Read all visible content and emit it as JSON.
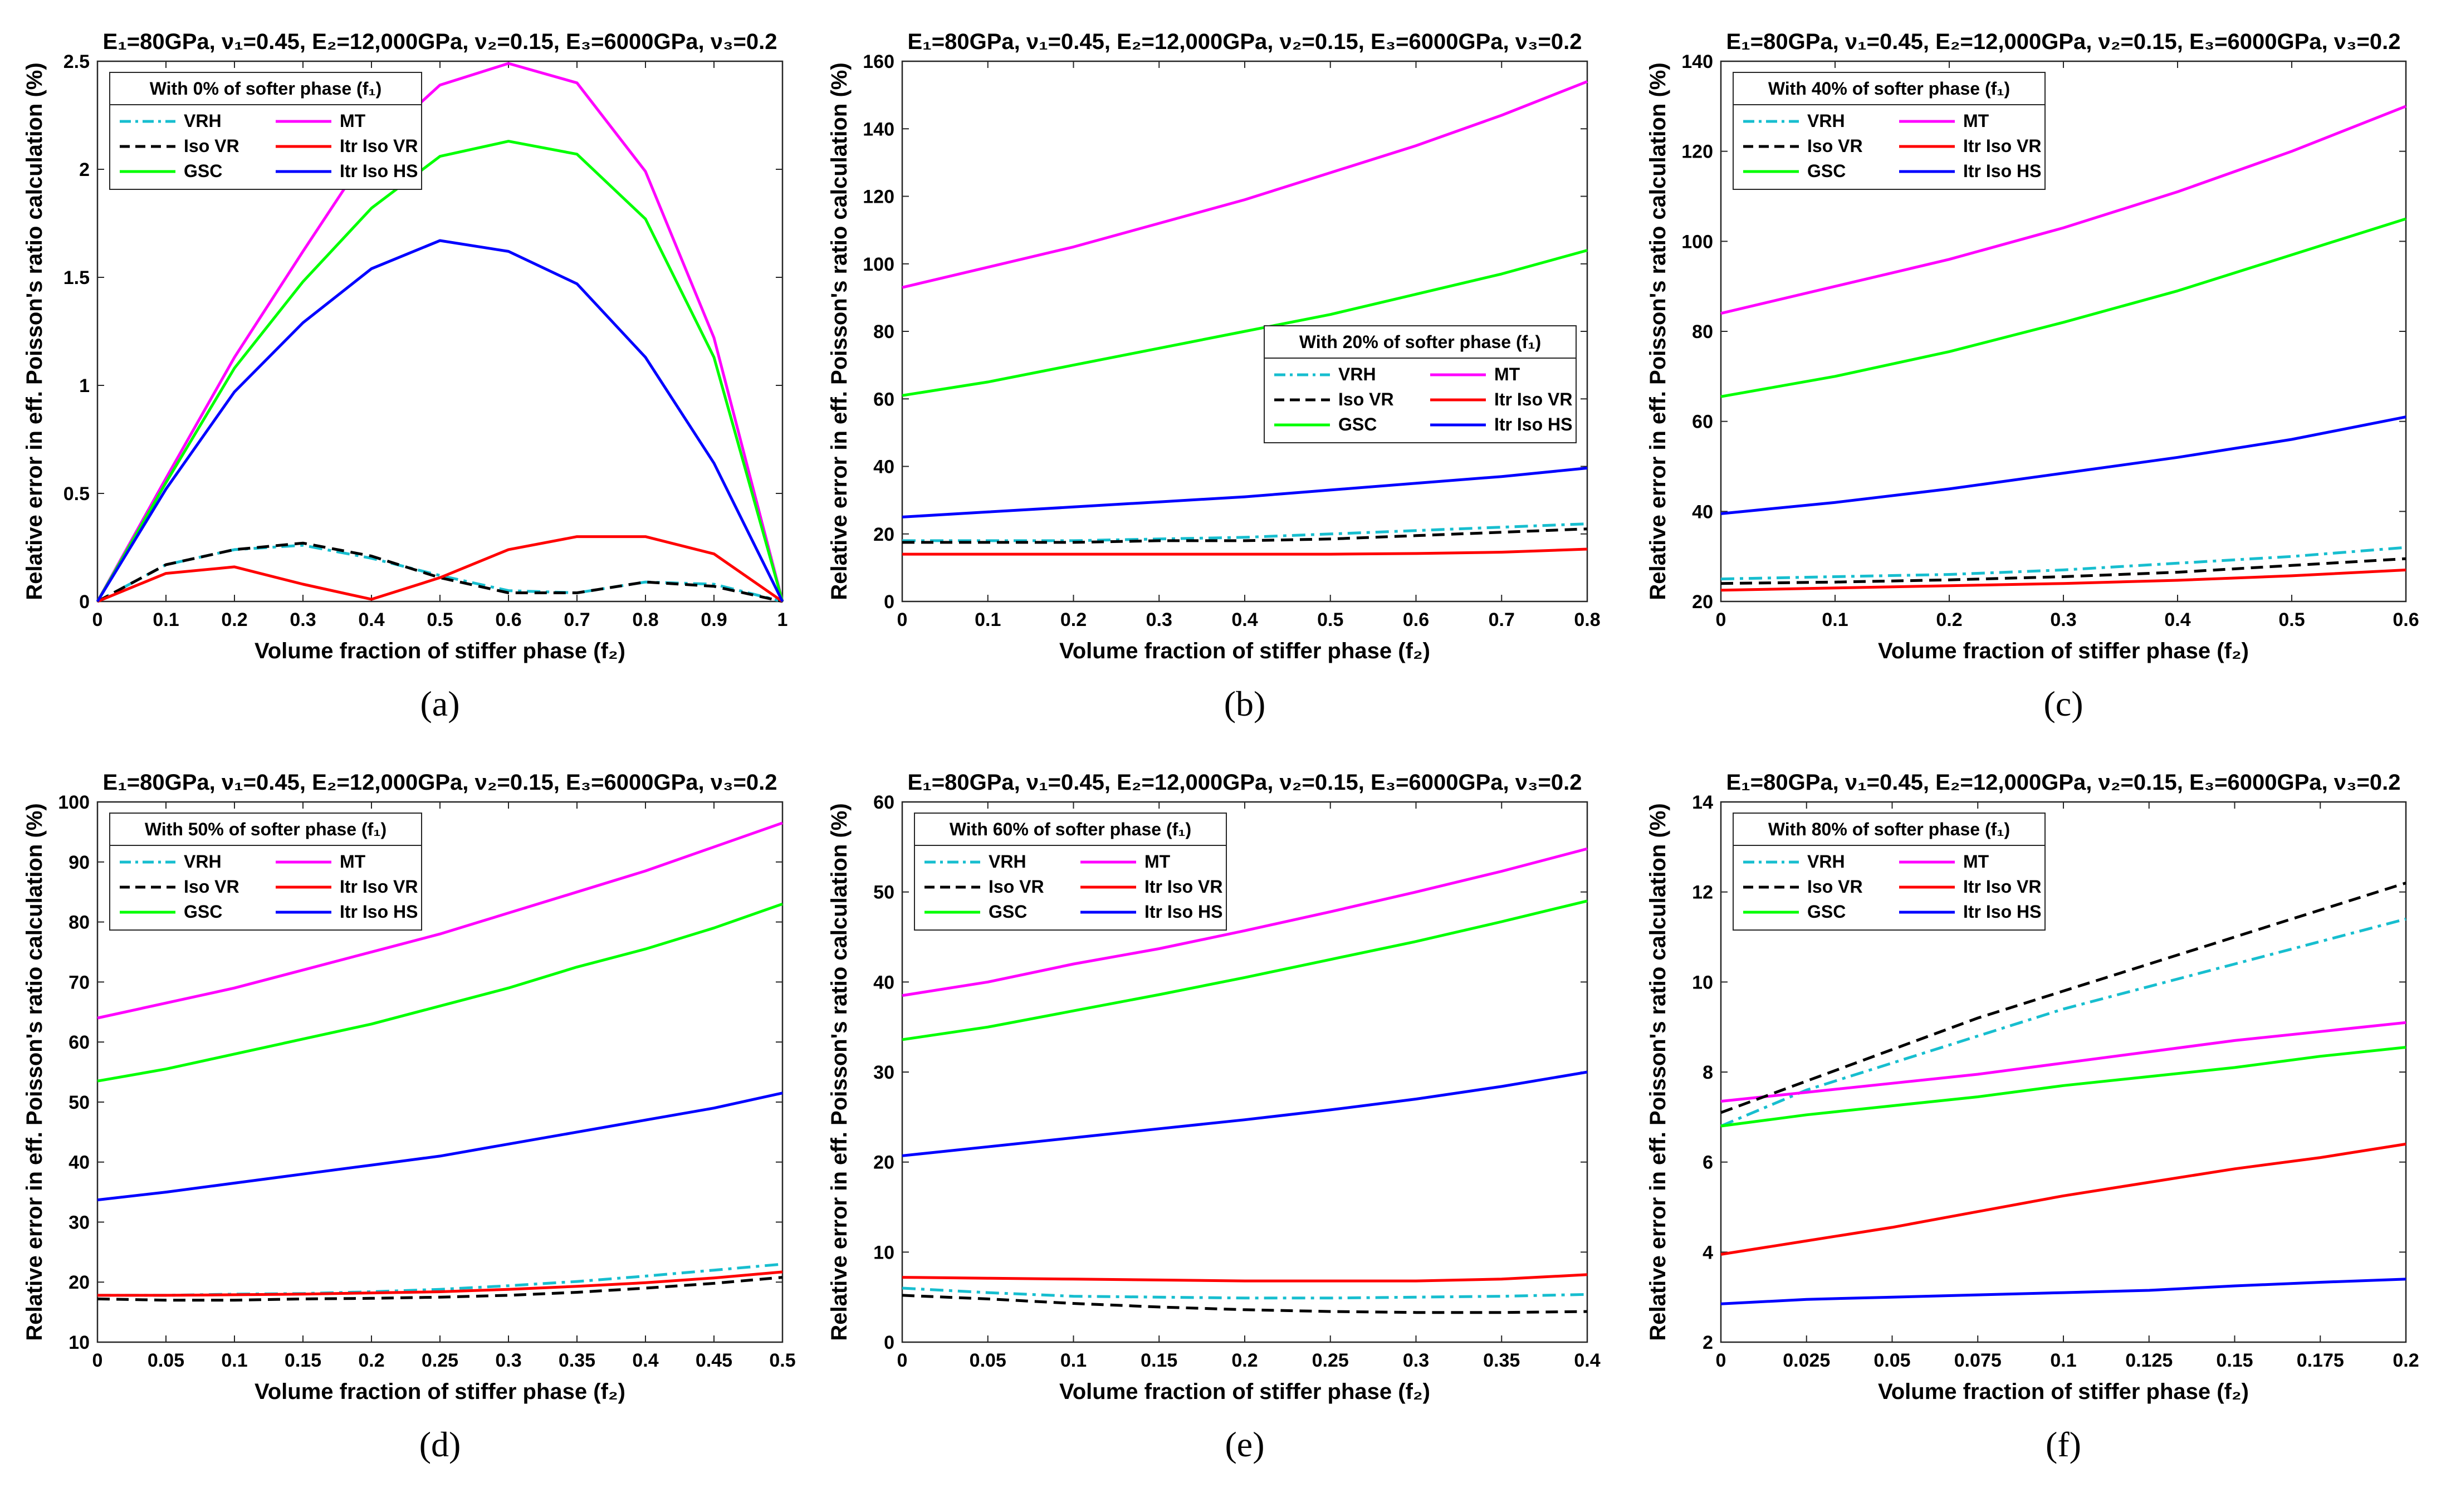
{
  "figure": {
    "shared_title": "E₁=80GPa, ν₁=0.45,  E₂=12,000GPa, ν₂=0.15,  E₃=6000GPa, ν₃=0.2",
    "xlabel": "Volume fraction of stiffer phase (f₂)",
    "ylabel": "Relative error in eff. Poisson's ratio calculation (%)"
  },
  "series_styles": [
    {
      "name": "VRH",
      "color": "#17becf",
      "dash": "dashdot"
    },
    {
      "name": "MT",
      "color": "#ff00ff",
      "dash": "solid"
    },
    {
      "name": "Iso VR",
      "color": "#000000",
      "dash": "dashed"
    },
    {
      "name": "Itr Iso VR",
      "color": "#ff0000",
      "dash": "solid"
    },
    {
      "name": "GSC",
      "color": "#00ff00",
      "dash": "solid"
    },
    {
      "name": "Itr Iso HS",
      "color": "#0000ff",
      "dash": "solid"
    }
  ],
  "chart_data": [
    {
      "type": "line",
      "panel_label": "(a)",
      "title": "E₁=80GPa, ν₁=0.45,  E₂=12,000GPa, ν₂=0.15,  E₃=6000GPa, ν₃=0.2",
      "legend_title": "With 0% of softer phase (f₁)",
      "legend_position": "top-left",
      "xlabel": "Volume fraction of stiffer phase (f₂)",
      "ylabel": "Relative error in eff. Poisson's ratio calculation (%)",
      "xlim": [
        0,
        1
      ],
      "ylim": [
        0,
        2.5
      ],
      "xticks": [
        "0",
        "0.1",
        "0.2",
        "0.3",
        "0.4",
        "0.5",
        "0.6",
        "0.7",
        "0.8",
        "0.9",
        "1"
      ],
      "yticks": [
        "0",
        "0.5",
        "1",
        "1.5",
        "2",
        "2.5"
      ],
      "x": [
        0,
        0.1,
        0.2,
        0.3,
        0.4,
        0.5,
        0.6,
        0.7,
        0.8,
        0.9,
        1
      ],
      "series": [
        {
          "name": "VRH",
          "values": [
            0,
            0.17,
            0.24,
            0.26,
            0.2,
            0.12,
            0.05,
            0.04,
            0.09,
            0.08,
            0
          ]
        },
        {
          "name": "MT",
          "values": [
            0,
            0.57,
            1.13,
            1.62,
            2.1,
            2.39,
            2.49,
            2.4,
            1.99,
            1.22,
            0
          ]
        },
        {
          "name": "Iso VR",
          "values": [
            0,
            0.17,
            0.24,
            0.27,
            0.21,
            0.11,
            0.04,
            0.04,
            0.09,
            0.07,
            0
          ]
        },
        {
          "name": "Itr Iso VR",
          "values": [
            0,
            0.13,
            0.16,
            0.08,
            0.01,
            0.11,
            0.24,
            0.3,
            0.3,
            0.22,
            0
          ]
        },
        {
          "name": "GSC",
          "values": [
            0,
            0.55,
            1.08,
            1.48,
            1.82,
            2.06,
            2.13,
            2.07,
            1.77,
            1.13,
            0
          ]
        },
        {
          "name": "Itr Iso HS",
          "values": [
            0,
            0.52,
            0.97,
            1.29,
            1.54,
            1.67,
            1.62,
            1.47,
            1.13,
            0.64,
            0
          ]
        }
      ]
    },
    {
      "type": "line",
      "panel_label": "(b)",
      "title": "E₁=80GPa, ν₁=0.45,  E₂=12,000GPa, ν₂=0.15,  E₃=6000GPa, ν₃=0.2",
      "legend_title": "With 20% of softer phase (f₁)",
      "legend_position": "center-right",
      "xlabel": "Volume fraction of stiffer phase (f₂)",
      "ylabel": "Relative error in eff. Poisson's ratio calculation (%)",
      "xlim": [
        0,
        0.8
      ],
      "ylim": [
        0,
        160
      ],
      "xticks": [
        "0",
        "0.1",
        "0.2",
        "0.3",
        "0.4",
        "0.5",
        "0.6",
        "0.7",
        "0.8"
      ],
      "yticks": [
        "0",
        "20",
        "40",
        "60",
        "80",
        "100",
        "120",
        "140",
        "160"
      ],
      "x": [
        0,
        0.1,
        0.2,
        0.3,
        0.4,
        0.5,
        0.6,
        0.7,
        0.8
      ],
      "series": [
        {
          "name": "VRH",
          "values": [
            18,
            18,
            18,
            18.5,
            19,
            20,
            21,
            22,
            23
          ]
        },
        {
          "name": "MT",
          "values": [
            93,
            99,
            105,
            112,
            119,
            127,
            135,
            144,
            154
          ]
        },
        {
          "name": "Iso VR",
          "values": [
            17.5,
            17.5,
            17.5,
            18,
            18,
            18.5,
            19.5,
            20.5,
            21.5
          ]
        },
        {
          "name": "Itr Iso VR",
          "values": [
            14,
            14,
            14,
            14,
            14,
            14,
            14.2,
            14.6,
            15.5
          ]
        },
        {
          "name": "GSC",
          "values": [
            61,
            65,
            70,
            75,
            80,
            85,
            91,
            97,
            104
          ]
        },
        {
          "name": "Itr Iso HS",
          "values": [
            25,
            26.5,
            28,
            29.5,
            31,
            33,
            35,
            37,
            39.5
          ]
        }
      ]
    },
    {
      "type": "line",
      "panel_label": "(c)",
      "title": "E₁=80GPa, ν₁=0.45,  E₂=12,000GPa, ν₂=0.15,  E₃=6000GPa, ν₃=0.2",
      "legend_title": "With 40% of softer phase (f₁)",
      "legend_position": "top-left",
      "xlabel": "Volume fraction of stiffer phase (f₂)",
      "ylabel": "Relative error in eff. Poisson's ratio calculation (%)",
      "xlim": [
        0,
        0.6
      ],
      "ylim": [
        20,
        140
      ],
      "xticks": [
        "0",
        "0.1",
        "0.2",
        "0.3",
        "0.4",
        "0.5",
        "0.6"
      ],
      "yticks": [
        "20",
        "40",
        "60",
        "80",
        "100",
        "120",
        "140"
      ],
      "x": [
        0,
        0.1,
        0.2,
        0.3,
        0.4,
        0.5,
        0.6
      ],
      "series": [
        {
          "name": "VRH",
          "values": [
            25,
            25.5,
            26,
            27,
            28.5,
            30,
            32
          ]
        },
        {
          "name": "MT",
          "values": [
            84,
            90,
            96,
            103,
            111,
            120,
            130
          ]
        },
        {
          "name": "Iso VR",
          "values": [
            24,
            24.3,
            24.8,
            25.5,
            26.5,
            28,
            29.5
          ]
        },
        {
          "name": "Itr Iso VR",
          "values": [
            22.5,
            23,
            23.5,
            24,
            24.7,
            25.7,
            27
          ]
        },
        {
          "name": "GSC",
          "values": [
            65.5,
            70,
            75.5,
            82,
            89,
            97,
            105
          ]
        },
        {
          "name": "Itr Iso HS",
          "values": [
            39.5,
            42,
            45,
            48.5,
            52,
            56,
            61
          ]
        }
      ]
    },
    {
      "type": "line",
      "panel_label": "(d)",
      "title": "E₁=80GPa, ν₁=0.45,  E₂=12,000GPa, ν₂=0.15,  E₃=6000GPa, ν₃=0.2",
      "legend_title": "With 50% of softer phase (f₁)",
      "legend_position": "top-left",
      "xlabel": "Volume fraction of stiffer phase (f₂)",
      "ylabel": "Relative error in eff. Poisson's ratio calculation (%)",
      "xlim": [
        0,
        0.5
      ],
      "ylim": [
        10,
        100
      ],
      "xticks": [
        "0",
        "0.05",
        "0.1",
        "0.15",
        "0.2",
        "0.25",
        "0.3",
        "0.35",
        "0.4",
        "0.45",
        "0.5"
      ],
      "yticks": [
        "10",
        "20",
        "30",
        "40",
        "50",
        "60",
        "70",
        "80",
        "90",
        "100"
      ],
      "x": [
        0,
        0.05,
        0.1,
        0.15,
        0.2,
        0.25,
        0.3,
        0.35,
        0.4,
        0.45,
        0.5
      ],
      "series": [
        {
          "name": "VRH",
          "values": [
            17.8,
            17.8,
            18,
            18.1,
            18.4,
            18.8,
            19.4,
            20.1,
            21,
            22,
            23
          ]
        },
        {
          "name": "MT",
          "values": [
            64,
            66.5,
            69,
            72,
            75,
            78,
            81.5,
            85,
            88.5,
            92.5,
            96.5
          ]
        },
        {
          "name": "Iso VR",
          "values": [
            17.2,
            17,
            17,
            17.2,
            17.3,
            17.5,
            17.8,
            18.3,
            19,
            19.8,
            20.8
          ]
        },
        {
          "name": "Itr Iso VR",
          "values": [
            17.8,
            17.8,
            17.9,
            18,
            18.2,
            18.4,
            18.8,
            19.3,
            19.9,
            20.7,
            21.7
          ]
        },
        {
          "name": "GSC",
          "values": [
            53.5,
            55.5,
            58,
            60.5,
            63,
            66,
            69,
            72.5,
            75.5,
            79,
            83
          ]
        },
        {
          "name": "Itr Iso HS",
          "values": [
            33.7,
            35,
            36.5,
            38,
            39.5,
            41,
            43,
            45,
            47,
            49,
            51.5
          ]
        }
      ]
    },
    {
      "type": "line",
      "panel_label": "(e)",
      "title": "E₁=80GPa, ν₁=0.45,  E₂=12,000GPa, ν₂=0.15,  E₃=6000GPa, ν₃=0.2",
      "legend_title": "With 60% of softer phase (f₁)",
      "legend_position": "top-left",
      "xlabel": "Volume fraction of stiffer phase (f₂)",
      "ylabel": "Relative error in eff. Poisson's ratio calculation (%)",
      "xlim": [
        0,
        0.4
      ],
      "ylim": [
        0,
        60
      ],
      "xticks": [
        "0",
        "0.05",
        "0.1",
        "0.15",
        "0.2",
        "0.25",
        "0.3",
        "0.35",
        "0.4"
      ],
      "yticks": [
        "0",
        "10",
        "20",
        "30",
        "40",
        "50",
        "60"
      ],
      "x": [
        0,
        0.05,
        0.1,
        0.15,
        0.2,
        0.25,
        0.3,
        0.35,
        0.4
      ],
      "series": [
        {
          "name": "VRH",
          "values": [
            6,
            5.5,
            5.1,
            5,
            4.9,
            4.9,
            5,
            5.1,
            5.3
          ]
        },
        {
          "name": "MT",
          "values": [
            38.5,
            40,
            42,
            43.7,
            45.7,
            47.8,
            50,
            52.3,
            54.8
          ]
        },
        {
          "name": "Iso VR",
          "values": [
            5.2,
            4.8,
            4.3,
            3.9,
            3.6,
            3.4,
            3.3,
            3.3,
            3.4
          ]
        },
        {
          "name": "Itr Iso VR",
          "values": [
            7.2,
            7.1,
            7,
            6.9,
            6.8,
            6.8,
            6.8,
            7,
            7.5
          ]
        },
        {
          "name": "GSC",
          "values": [
            33.6,
            35,
            36.8,
            38.6,
            40.5,
            42.5,
            44.5,
            46.7,
            49
          ]
        },
        {
          "name": "Itr Iso HS",
          "values": [
            20.7,
            21.7,
            22.7,
            23.7,
            24.7,
            25.8,
            27,
            28.4,
            30
          ]
        }
      ]
    },
    {
      "type": "line",
      "panel_label": "(f)",
      "title": "E₁=80GPa, ν₁=0.45,  E₂=12,000GPa, ν₂=0.15,  E₃=6000GPa, ν₃=0.2",
      "legend_title": "With 80% of softer phase (f₁)",
      "legend_position": "top-left",
      "xlabel": "Volume fraction of stiffer phase (f₂)",
      "ylabel": "Relative error in eff. Poisson's ratio calculation (%)",
      "xlim": [
        0,
        0.2
      ],
      "ylim": [
        2,
        14
      ],
      "xticks": [
        "0",
        "0.025",
        "0.05",
        "0.075",
        "0.1",
        "0.125",
        "0.15",
        "0.175",
        "0.2"
      ],
      "yticks": [
        "2",
        "4",
        "6",
        "8",
        "10",
        "12",
        "14"
      ],
      "x": [
        0,
        0.025,
        0.05,
        0.075,
        0.1,
        0.125,
        0.15,
        0.175,
        0.2
      ],
      "series": [
        {
          "name": "VRH",
          "values": [
            6.8,
            7.6,
            8.2,
            8.8,
            9.4,
            9.9,
            10.4,
            10.9,
            11.4
          ]
        },
        {
          "name": "MT",
          "values": [
            7.35,
            7.55,
            7.75,
            7.95,
            8.2,
            8.45,
            8.7,
            8.9,
            9.1
          ]
        },
        {
          "name": "Iso VR",
          "values": [
            7.1,
            7.8,
            8.5,
            9.2,
            9.8,
            10.4,
            11,
            11.6,
            12.2
          ]
        },
        {
          "name": "Itr Iso VR",
          "values": [
            3.95,
            4.25,
            4.55,
            4.9,
            5.25,
            5.55,
            5.85,
            6.1,
            6.4
          ]
        },
        {
          "name": "GSC",
          "values": [
            6.8,
            7.05,
            7.25,
            7.45,
            7.7,
            7.9,
            8.1,
            8.35,
            8.55
          ]
        },
        {
          "name": "Itr Iso HS",
          "values": [
            2.85,
            2.95,
            3,
            3.05,
            3.1,
            3.15,
            3.25,
            3.33,
            3.4
          ]
        }
      ]
    }
  ]
}
